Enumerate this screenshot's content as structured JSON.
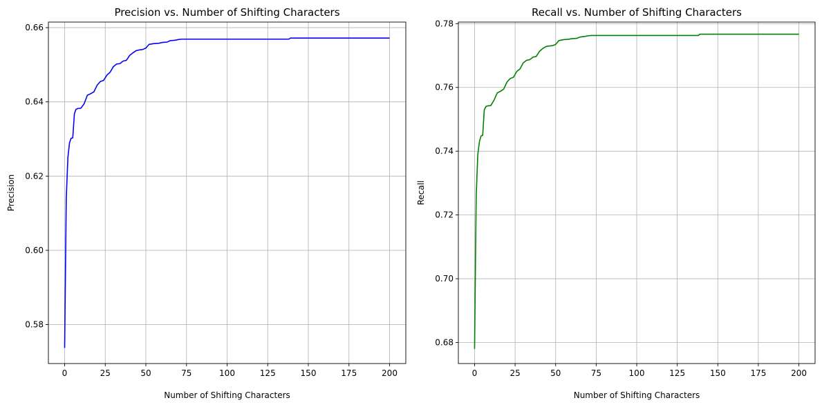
{
  "chart_data": [
    {
      "type": "line",
      "title": "Precision vs. Number of Shifting Characters",
      "xlabel": "Number of Shifting Characters",
      "ylabel": "Precision",
      "xlim": [
        -10,
        210
      ],
      "ylim": [
        0.5695,
        0.6615
      ],
      "xticks": [
        0,
        25,
        50,
        75,
        100,
        125,
        150,
        175,
        200
      ],
      "yticks": [
        0.58,
        0.6,
        0.62,
        0.64,
        0.66
      ],
      "ytick_labels": [
        "0.58",
        "0.60",
        "0.62",
        "0.64",
        "0.66"
      ],
      "grid": true,
      "series": [
        {
          "color": "#0000ff",
          "x": [
            0,
            1,
            2,
            3,
            4,
            5,
            6,
            7,
            8,
            10,
            12,
            14,
            16,
            18,
            20,
            22,
            24,
            26,
            28,
            30,
            32,
            34,
            36,
            38,
            40,
            42,
            44,
            46,
            48,
            50,
            52,
            55,
            58,
            60,
            63,
            65,
            68,
            70,
            72,
            80,
            100,
            120,
            138,
            139,
            160,
            180,
            200
          ],
          "y": [
            0.5737,
            0.614,
            0.625,
            0.629,
            0.6302,
            0.6303,
            0.6368,
            0.638,
            0.6382,
            0.6383,
            0.6395,
            0.6418,
            0.6422,
            0.6427,
            0.6445,
            0.6455,
            0.6458,
            0.6472,
            0.648,
            0.6495,
            0.6502,
            0.6503,
            0.651,
            0.6512,
            0.6525,
            0.6532,
            0.6538,
            0.654,
            0.6541,
            0.6545,
            0.6555,
            0.6557,
            0.6558,
            0.656,
            0.6561,
            0.6565,
            0.6566,
            0.6568,
            0.6569,
            0.6569,
            0.6569,
            0.6569,
            0.6569,
            0.6572,
            0.6572,
            0.6572,
            0.6572
          ]
        }
      ]
    },
    {
      "type": "line",
      "title": "Recall vs. Number of Shifting Characters",
      "xlabel": "Number of Shifting Characters",
      "ylabel": "Recall",
      "xlim": [
        -10,
        210
      ],
      "ylim": [
        0.6734,
        0.7805
      ],
      "xticks": [
        0,
        25,
        50,
        75,
        100,
        125,
        150,
        175,
        200
      ],
      "yticks": [
        0.68,
        0.7,
        0.72,
        0.74,
        0.76,
        0.78
      ],
      "ytick_labels": [
        "0.68",
        "0.70",
        "0.72",
        "0.74",
        "0.76",
        "0.78"
      ],
      "grid": true,
      "series": [
        {
          "color": "#008000",
          "x": [
            0,
            1,
            2,
            3,
            4,
            5,
            6,
            7,
            8,
            10,
            12,
            14,
            16,
            18,
            20,
            22,
            24,
            26,
            28,
            30,
            32,
            34,
            36,
            38,
            40,
            42,
            44,
            46,
            48,
            50,
            52,
            55,
            58,
            60,
            63,
            65,
            68,
            70,
            72,
            80,
            100,
            120,
            138,
            139,
            160,
            180,
            200
          ],
          "y": [
            0.678,
            0.726,
            0.739,
            0.743,
            0.7448,
            0.745,
            0.753,
            0.754,
            0.7542,
            0.7543,
            0.756,
            0.7583,
            0.7588,
            0.7595,
            0.7617,
            0.7628,
            0.7632,
            0.765,
            0.7658,
            0.7677,
            0.7685,
            0.7687,
            0.7695,
            0.7697,
            0.7713,
            0.7722,
            0.7728,
            0.773,
            0.7731,
            0.7735,
            0.7747,
            0.775,
            0.7751,
            0.7753,
            0.7754,
            0.7758,
            0.776,
            0.7762,
            0.7763,
            0.7763,
            0.7763,
            0.7763,
            0.7763,
            0.7767,
            0.7767,
            0.7767,
            0.7767
          ]
        }
      ]
    }
  ]
}
